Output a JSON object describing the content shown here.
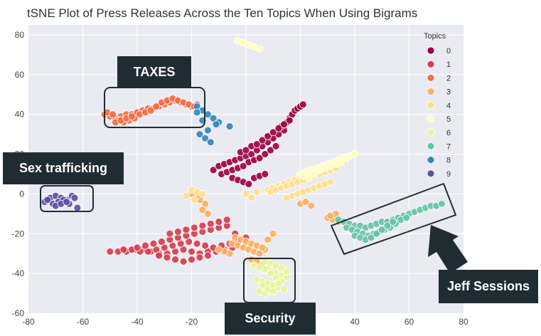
{
  "chart_data": {
    "type": "scatter",
    "title": "tSNE Plot of Press Releases Across the Ten Topics When Using Bigrams",
    "xlabel": "",
    "ylabel": "",
    "xlim": [
      -80,
      80
    ],
    "ylim": [
      -60,
      85
    ],
    "x_ticks": [
      -80,
      -60,
      -40,
      -20,
      0,
      20,
      40,
      60,
      80
    ],
    "y_ticks": [
      -60,
      -40,
      -20,
      0,
      20,
      40,
      60,
      80
    ],
    "grid": true,
    "legend": {
      "title": "Topics",
      "placement": "top-right"
    },
    "colors": {
      "background": "#eaeaf2",
      "grid": "#ffffff",
      "callout": "#1f2d33",
      "box_outline": "#1f2d33"
    },
    "series": [
      {
        "name": "0",
        "color": "#9e0142",
        "x": [
          -12,
          -10,
          -8,
          -6,
          -4,
          -2,
          0,
          2,
          4,
          6,
          8,
          -9,
          -7,
          -5,
          -3,
          -1,
          1,
          3,
          5,
          7,
          9,
          11,
          10,
          12,
          14,
          13,
          15,
          16,
          17,
          18,
          19,
          20,
          21,
          -5,
          -3,
          -1,
          1,
          3,
          5,
          7,
          -2,
          0,
          2,
          4,
          6,
          8,
          10,
          12,
          14,
          16
        ],
        "y": [
          12,
          14,
          15,
          16,
          17,
          18,
          19,
          20,
          22,
          24,
          26,
          10,
          11,
          12,
          13,
          14,
          16,
          17,
          18,
          20,
          22,
          24,
          28,
          30,
          32,
          34,
          36,
          38,
          40,
          42,
          43,
          44,
          45,
          8,
          7,
          6,
          5,
          8,
          9,
          10,
          21,
          22,
          24,
          25,
          27,
          29,
          31,
          33,
          35,
          37
        ]
      },
      {
        "name": "1",
        "color": "#d53e4f",
        "x": [
          -50,
          -47,
          -44,
          -41,
          -38,
          -35,
          -32,
          -29,
          -26,
          -23,
          -20,
          -17,
          -14,
          -11,
          -8,
          -5,
          -45,
          -42,
          -39,
          -36,
          -33,
          -30,
          -27,
          -24,
          -21,
          -18,
          -15,
          -12,
          -9,
          -6,
          -3,
          -40,
          -37,
          -34,
          -31,
          -28,
          -25,
          -22,
          -19,
          -16,
          -13,
          -10,
          -7,
          -32,
          -29,
          -26,
          -23,
          -20,
          -17,
          -14,
          -28,
          -25,
          -22,
          -19,
          -16,
          -13,
          -10,
          -7,
          -4,
          0
        ],
        "y": [
          -29,
          -29,
          -29,
          -28,
          -28,
          -29,
          -30,
          -30,
          -29,
          -28,
          -29,
          -30,
          -29,
          -29,
          -28,
          -27,
          -28,
          -28,
          -29,
          -29,
          -28,
          -27,
          -26,
          -25,
          -24,
          -25,
          -26,
          -27,
          -26,
          -25,
          -24,
          -27,
          -26,
          -25,
          -24,
          -23,
          -22,
          -21,
          -20,
          -19,
          -18,
          -17,
          -16,
          -31,
          -32,
          -33,
          -34,
          -33,
          -32,
          -31,
          -20,
          -19,
          -18,
          -17,
          -16,
          -15,
          -14,
          -13,
          -20,
          -22
        ]
      },
      {
        "name": "2",
        "color": "#f46d43",
        "x": [
          -52,
          -50,
          -48,
          -46,
          -44,
          -42,
          -40,
          -38,
          -36,
          -34,
          -32,
          -30,
          -28,
          -26,
          -24,
          -22,
          -20,
          -18,
          -51,
          -49,
          -47,
          -45,
          -43,
          -41,
          -39,
          -37,
          -35,
          -33,
          -31,
          -29,
          -27,
          -25,
          -23,
          -21,
          -19,
          -48,
          -46,
          -44,
          -42
        ],
        "y": [
          40,
          39,
          38,
          39,
          40,
          40,
          41,
          42,
          43,
          43,
          44,
          45,
          46,
          47,
          46,
          45,
          44,
          45,
          41,
          40,
          37,
          36,
          37,
          38,
          40,
          41,
          42,
          44,
          46,
          47,
          48,
          47,
          46,
          45,
          44,
          36,
          37,
          38,
          39
        ]
      },
      {
        "name": "3",
        "color": "#fdae61",
        "x": [
          -5,
          -3,
          -1,
          1,
          3,
          5,
          7,
          -4,
          -2,
          0,
          2,
          4,
          6,
          8,
          10,
          -6,
          -8,
          -10,
          -15,
          -17,
          -18,
          -20,
          -16,
          -14,
          2,
          4,
          6,
          8,
          30,
          32,
          33,
          34,
          31,
          20,
          22,
          24
        ],
        "y": [
          -25,
          -26,
          -27,
          -28,
          -29,
          -30,
          -28,
          -22,
          -23,
          -24,
          -25,
          -26,
          -27,
          -23,
          -20,
          -30,
          -29,
          -28,
          -5,
          -3,
          -1,
          0,
          -8,
          -10,
          -33,
          -34,
          -36,
          -38,
          -12,
          -13,
          -10,
          -14,
          -11,
          -5,
          -4,
          -6
        ]
      },
      {
        "name": "4",
        "color": "#fee08b",
        "x": [
          8,
          10,
          12,
          14,
          16,
          18,
          20,
          22,
          24,
          26,
          28,
          30,
          32,
          34,
          36,
          9,
          11,
          13,
          15,
          17,
          19,
          21,
          23,
          25,
          27,
          29,
          31,
          33,
          15,
          17,
          19,
          21,
          23,
          25,
          27,
          29,
          31,
          0,
          2,
          4,
          -20,
          -18,
          -16,
          -22,
          -19
        ],
        "y": [
          2,
          3,
          4,
          5,
          6,
          7,
          8,
          9,
          10,
          11,
          12,
          13,
          14,
          15,
          16,
          1,
          2,
          3,
          4,
          5,
          6,
          7,
          8,
          9,
          10,
          11,
          12,
          13,
          -2,
          -1,
          0,
          1,
          2,
          3,
          4,
          5,
          6,
          0,
          -2,
          1,
          2,
          1,
          0,
          -1,
          -3
        ]
      },
      {
        "name": "5",
        "color": "#ffffbf",
        "x": [
          -3,
          -1,
          1,
          3,
          5,
          20,
          22,
          24,
          26,
          28,
          30,
          32,
          34,
          36,
          38,
          40,
          21,
          23,
          25,
          27,
          29,
          31,
          33,
          35,
          37
        ],
        "y": [
          77,
          76,
          75,
          74,
          73,
          10,
          11,
          12,
          13,
          14,
          15,
          16,
          17,
          18,
          19,
          20,
          9,
          8,
          10,
          12,
          13,
          14,
          15,
          16,
          18
        ]
      },
      {
        "name": "6",
        "color": "#e6f598",
        "x": [
          3,
          5,
          7,
          9,
          11,
          13,
          15,
          4,
          6,
          8,
          10,
          12,
          14,
          5,
          7,
          9,
          11,
          13,
          6,
          8,
          10,
          12,
          14,
          15,
          7,
          9,
          11,
          13
        ],
        "y": [
          -36,
          -37,
          -38,
          -39,
          -40,
          -41,
          -42,
          -43,
          -44,
          -45,
          -46,
          -47,
          -48,
          -49,
          -50,
          -40,
          -42,
          -44,
          -46,
          -48,
          -49,
          -45,
          -38,
          -39,
          -34,
          -35,
          -36,
          -37
        ]
      },
      {
        "name": "7",
        "color": "#66c2a5",
        "x": [
          34,
          36,
          38,
          40,
          42,
          44,
          46,
          48,
          50,
          52,
          54,
          56,
          58,
          60,
          62,
          64,
          66,
          68,
          70,
          72,
          37,
          39,
          41,
          43,
          45,
          47,
          49,
          51,
          53,
          55,
          57,
          59,
          40,
          42,
          44,
          46,
          48,
          50,
          52,
          54
        ],
        "y": [
          -13,
          -14,
          -15,
          -16,
          -16,
          -17,
          -16,
          -15,
          -14,
          -14,
          -13,
          -12,
          -11,
          -10,
          -9,
          -8,
          -7,
          -6,
          -6,
          -5,
          -17,
          -18,
          -19,
          -20,
          -21,
          -20,
          -19,
          -18,
          -17,
          -15,
          -13,
          -12,
          -21,
          -22,
          -23,
          -22,
          -20,
          -18,
          -16,
          -14
        ]
      },
      {
        "name": "8",
        "color": "#3288bd",
        "x": [
          -18,
          -16,
          -14,
          -12,
          -10,
          -17,
          -15,
          -13,
          -11,
          -18,
          -16,
          -14,
          -6
        ],
        "y": [
          44,
          42,
          40,
          38,
          36,
          30,
          28,
          26,
          35,
          41,
          37,
          32,
          34
        ]
      },
      {
        "name": "9",
        "color": "#5e4fa2",
        "x": [
          -74,
          -72,
          -70,
          -68,
          -66,
          -64,
          -71,
          -69,
          -67,
          -65,
          -63,
          -73,
          -70,
          -68,
          -66,
          -62
        ],
        "y": [
          -4,
          -2,
          -1,
          -2,
          -3,
          -1,
          -5,
          -4,
          -3,
          -5,
          -2,
          -3,
          -6,
          -5,
          -4,
          -7
        ]
      }
    ]
  },
  "callouts": {
    "taxes": "TAXES",
    "sex_trafficking": "Sex trafficking",
    "jeff_sessions": "Jeff Sessions",
    "security": "Security"
  }
}
